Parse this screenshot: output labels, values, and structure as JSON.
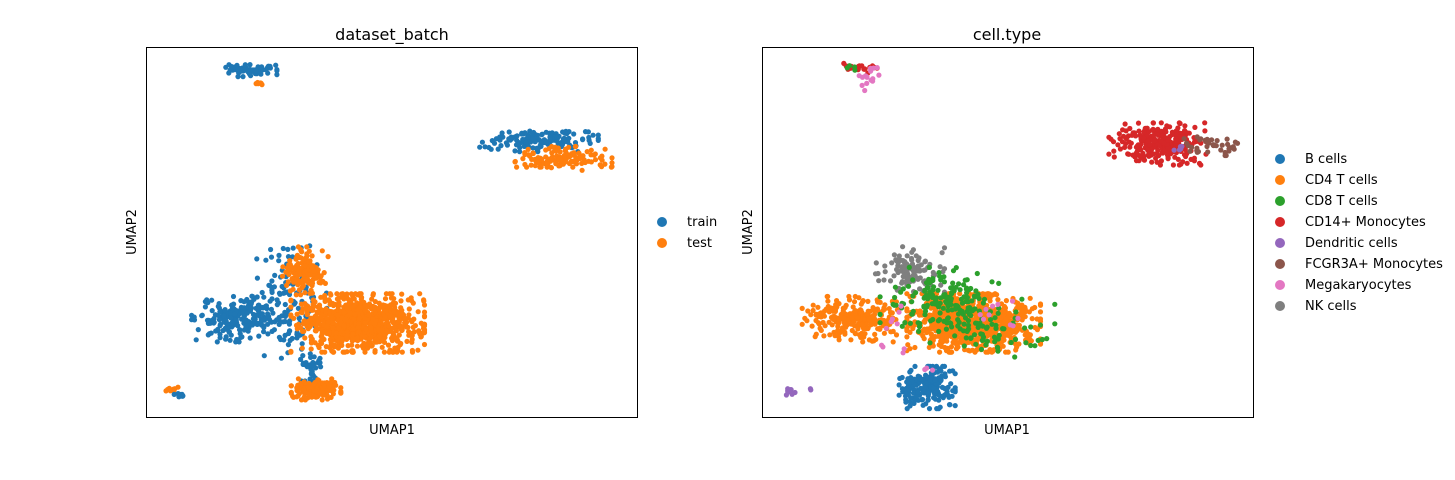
{
  "chart_data": [
    {
      "type": "scatter",
      "title": "dataset_batch",
      "xlabel": "UMAP1",
      "ylabel": "UMAP2",
      "xlim": [
        0,
        100
      ],
      "ylim": [
        0,
        100
      ],
      "grid": false,
      "ticks": false,
      "legend_placement": "right",
      "series": [
        {
          "name": "train",
          "color": "#1f77b4"
        },
        {
          "name": "test",
          "color": "#ff7f0e"
        }
      ],
      "clusters": [
        {
          "series": 0,
          "cx": 21,
          "cy": 94,
          "sx": 2.5,
          "sy": 0.8,
          "n": 60
        },
        {
          "series": 1,
          "cx": 23,
          "cy": 90.5,
          "sx": 0.6,
          "sy": 0.5,
          "n": 6
        },
        {
          "series": 0,
          "cx": 80,
          "cy": 75,
          "sx": 5.5,
          "sy": 1.4,
          "n": 150
        },
        {
          "series": 1,
          "cx": 85,
          "cy": 70,
          "sx": 4.5,
          "sy": 1.5,
          "n": 130
        },
        {
          "series": 0,
          "cx": 19,
          "cy": 26.5,
          "sx": 4.5,
          "sy": 2.8,
          "n": 220
        },
        {
          "series": 0,
          "cx": 29,
          "cy": 31,
          "sx": 3.5,
          "sy": 7,
          "n": 120
        },
        {
          "series": 1,
          "cx": 32.5,
          "cy": 39.5,
          "sx": 2.2,
          "sy": 3,
          "n": 140
        },
        {
          "series": 1,
          "cx": 43,
          "cy": 25.5,
          "sx": 6.2,
          "sy": 3.6,
          "n": 950
        },
        {
          "series": 0,
          "cx": 33.5,
          "cy": 13.5,
          "sx": 0.9,
          "sy": 1.7,
          "n": 35
        },
        {
          "series": 1,
          "cx": 34.5,
          "cy": 7.5,
          "sx": 2.3,
          "sy": 1.3,
          "n": 150
        },
        {
          "series": 1,
          "cx": 5,
          "cy": 7.5,
          "sx": 0.6,
          "sy": 0.4,
          "n": 10
        },
        {
          "series": 0,
          "cx": 6.8,
          "cy": 6.1,
          "sx": 0.6,
          "sy": 0.3,
          "n": 8
        }
      ]
    },
    {
      "type": "scatter",
      "title": "cell.type",
      "xlabel": "UMAP1",
      "ylabel": "UMAP2",
      "xlim": [
        0,
        100
      ],
      "ylim": [
        0,
        100
      ],
      "grid": false,
      "ticks": false,
      "legend_placement": "right",
      "series": [
        {
          "name": "B cells",
          "color": "#1f77b4"
        },
        {
          "name": "CD4 T cells",
          "color": "#ff7f0e"
        },
        {
          "name": "CD8 T cells",
          "color": "#2ca02c"
        },
        {
          "name": "CD14+ Monocytes",
          "color": "#d62728"
        },
        {
          "name": "Dendritic cells",
          "color": "#9467bd"
        },
        {
          "name": "FCGR3A+ Monocytes",
          "color": "#8c564b"
        },
        {
          "name": "Megakaryocytes",
          "color": "#e377c2"
        },
        {
          "name": "NK cells",
          "color": "#7f7f7f"
        }
      ],
      "clusters": [
        {
          "series": 1,
          "cx": 19,
          "cy": 26.5,
          "sx": 5,
          "sy": 2.8,
          "n": 260
        },
        {
          "series": 1,
          "cx": 43,
          "cy": 25.5,
          "sx": 6.2,
          "sy": 3.6,
          "n": 900
        },
        {
          "series": 7,
          "cx": 30,
          "cy": 40,
          "sx": 3.2,
          "sy": 2.8,
          "n": 110
        },
        {
          "series": 2,
          "cx": 36,
          "cy": 32,
          "sx": 5.5,
          "sy": 4,
          "n": 150
        },
        {
          "series": 2,
          "cx": 45,
          "cy": 24,
          "sx": 7,
          "sy": 3.6,
          "n": 80
        },
        {
          "series": 0,
          "cx": 33.5,
          "cy": 8,
          "sx": 2.6,
          "sy": 2.6,
          "n": 190
        },
        {
          "series": 3,
          "cx": 80.5,
          "cy": 74,
          "sx": 4.5,
          "sy": 2.6,
          "n": 260
        },
        {
          "series": 5,
          "cx": 91.5,
          "cy": 73.5,
          "sx": 2.8,
          "sy": 1.2,
          "n": 40
        },
        {
          "series": 4,
          "cx": 85,
          "cy": 72.8,
          "sx": 0.5,
          "sy": 0.5,
          "n": 5
        },
        {
          "series": 3,
          "cx": 20,
          "cy": 94.5,
          "sx": 1.6,
          "sy": 0.6,
          "n": 18
        },
        {
          "series": 6,
          "cx": 22,
          "cy": 92,
          "sx": 1.2,
          "sy": 1.6,
          "n": 16
        },
        {
          "series": 2,
          "cx": 18.5,
          "cy": 94.5,
          "sx": 0.6,
          "sy": 0.4,
          "n": 4
        },
        {
          "series": 4,
          "cx": 5.5,
          "cy": 6.8,
          "sx": 0.6,
          "sy": 0.5,
          "n": 12
        },
        {
          "series": 4,
          "cx": 9.5,
          "cy": 7.5,
          "sx": 0.3,
          "sy": 0.3,
          "n": 2
        },
        {
          "series": 6,
          "cx": 27.5,
          "cy": 24,
          "sx": 1.5,
          "sy": 3,
          "n": 10
        },
        {
          "series": 6,
          "cx": 48,
          "cy": 27,
          "sx": 4,
          "sy": 2,
          "n": 10
        },
        {
          "series": 6,
          "cx": 33.5,
          "cy": 13.5,
          "sx": 0.5,
          "sy": 0.5,
          "n": 3
        }
      ]
    }
  ]
}
